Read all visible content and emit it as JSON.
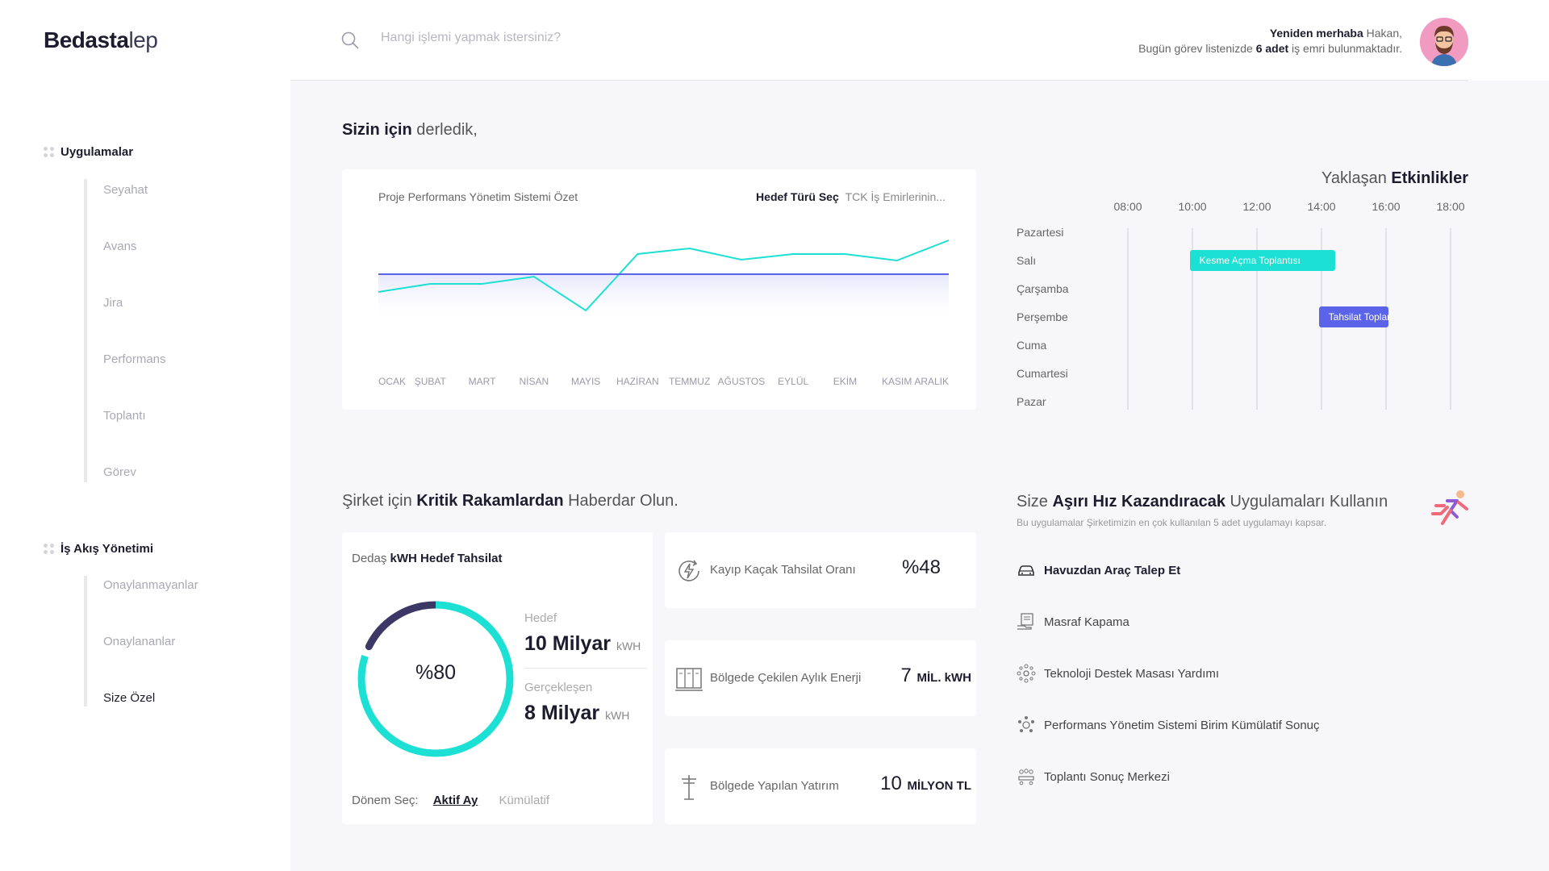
{
  "logo": {
    "bold": "Bedasta",
    "light": "lep"
  },
  "search": {
    "placeholder": "Hangi işlemi yapmak istersiniz?"
  },
  "greeting": {
    "hello": "Yeniden merhaba",
    "name": " Hakan,",
    "line2_pre": "Bugün görev listenizde ",
    "count": "6 adet",
    "line2_post": " iş emri bulunmaktadır."
  },
  "sidebar": {
    "groups": [
      {
        "title": "Uygulamalar",
        "items": [
          "Seyahat",
          "Avans",
          "Jira",
          "Performans",
          "Toplantı",
          "Görev"
        ]
      },
      {
        "title": "İş Akış Yönetimi",
        "items": [
          "Onaylanmayanlar",
          "Onaylananlar",
          "Size Özel"
        ]
      }
    ],
    "active_item": "Size Özel"
  },
  "section1": {
    "bold": "Sizin için",
    "rest": " derledik,"
  },
  "chart_card": {
    "title": "Proje Performans Yönetim Sistemi Özet",
    "select_label": "Hedef Türü Seç",
    "select_value": "TCK İş Emirlerinin..."
  },
  "chart_data": {
    "type": "line",
    "categories": [
      "OCAK",
      "ŞUBAT",
      "MART",
      "NİSAN",
      "MAYIS",
      "HAZİRAN",
      "TEMMUZ",
      "AĞUSTOS",
      "EYLÜL",
      "EKİM",
      "KASIM",
      "ARALIK"
    ],
    "series": [
      {
        "values": [
          38,
          48,
          48,
          57,
          15,
          85,
          92,
          78,
          85,
          85,
          77,
          102
        ],
        "color": "#1de0d5"
      },
      {
        "values": [
          60,
          60,
          60,
          60,
          60,
          60,
          60,
          60,
          60,
          60,
          60,
          60
        ],
        "color": "#5b63e8"
      }
    ],
    "ylim": [
      0,
      130
    ],
    "grid": false
  },
  "schedule": {
    "title_light": "Yaklaşan ",
    "title_bold": "Etkinlikler",
    "hours": [
      "08:00",
      "10:00",
      "12:00",
      "14:00",
      "16:00",
      "18:00"
    ],
    "days": [
      "Pazartesi",
      "Salı",
      "Çarşamba",
      "Perşembe",
      "Cuma",
      "Cumartesi",
      "Pazar"
    ],
    "events": [
      {
        "label": "Kesme Açma Toplantısı",
        "day": "Salı",
        "start": "09:55",
        "end": "14:25",
        "color": "#1de0d5"
      },
      {
        "label": "Tahsilat Toplan...",
        "day": "Perşembe",
        "start": "13:55",
        "end": "16:05",
        "color": "#5b63e8"
      }
    ]
  },
  "section2": {
    "pre": "Şirket için ",
    "bold": "Kritik Rakamlardan",
    "post": " Haberdar Olun."
  },
  "kwh_card": {
    "title_light": "Dedaş ",
    "title_bold": "kWH Hedef Tahsilat",
    "percent_label": "%80",
    "progress": 0.8,
    "target_label": "Hedef",
    "target_value": "10 Milyar",
    "target_unit": "kWH",
    "actual_label": "Gerçekleşen",
    "actual_value": "8 Milyar",
    "actual_unit": "kWH",
    "period_label": "Dönem Seç:",
    "period_active": "Aktif Ay",
    "period_other": "Kümülatif",
    "colors": {
      "ring": "#1de0d5",
      "remaining": "#3d3766"
    }
  },
  "kpis": [
    {
      "icon": "lightning-refresh-icon",
      "label": "Kayıp Kaçak Tahsilat Oranı",
      "value": "%48",
      "unit": ""
    },
    {
      "icon": "server-rack-icon",
      "label": "Bölgede Çekilen Aylık Enerji",
      "value": "7 ",
      "unit": "MİL. kWH"
    },
    {
      "icon": "power-pole-icon",
      "label": "Bölgede Yapılan Yatırım",
      "value": "10 ",
      "unit": "MİLYON TL"
    }
  ],
  "apps": {
    "title_pre": "Size ",
    "title_bold": "Aşırı Hız Kazandıracak",
    "title_post": " Uygulamaları Kullanın",
    "subtitle": "Bu uygulamalar Şirketimizin en çok kullanılan 5 adet uygulamayı kapsar.",
    "items": [
      {
        "icon": "car-icon",
        "label": "Havuzdan Araç Talep Et",
        "bold": true
      },
      {
        "icon": "receipt-hand-icon",
        "label": "Masraf Kapama",
        "bold": false
      },
      {
        "icon": "support-network-icon",
        "label": "Teknoloji Destek Masası Yardımı",
        "bold": false
      },
      {
        "icon": "team-performance-icon",
        "label": "Performans Yönetim Sistemi Birim Kümülatif Sonuç",
        "bold": false
      },
      {
        "icon": "meeting-icon",
        "label": "Toplantı Sonuç Merkezi",
        "bold": false
      }
    ]
  }
}
